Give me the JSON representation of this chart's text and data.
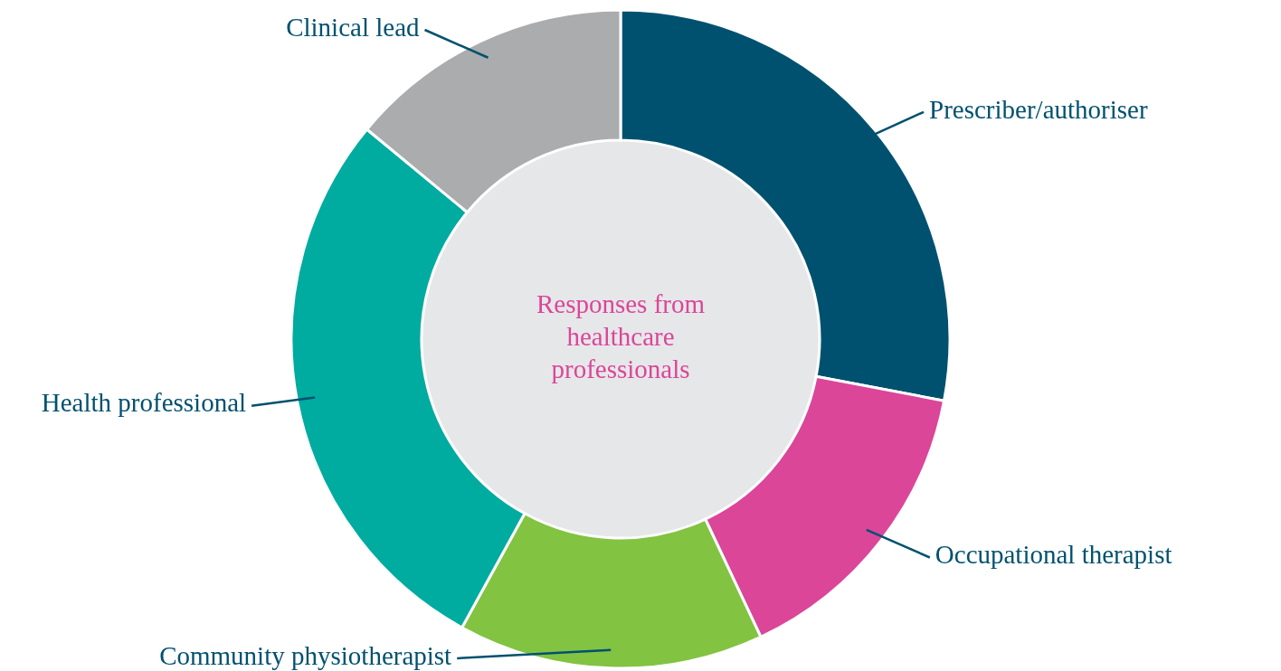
{
  "chart_data": {
    "type": "donut",
    "title": "Responses from healthcare professionals",
    "categories": [
      "Prescriber/authoriser",
      "Occupational therapist",
      "Community physiotherapist",
      "Health professional",
      "Clinical lead"
    ],
    "values": [
      28,
      15,
      15,
      28,
      14
    ],
    "colors": [
      "#00516f",
      "#db4699",
      "#82c341",
      "#00aba0",
      "#abacae"
    ]
  }
}
